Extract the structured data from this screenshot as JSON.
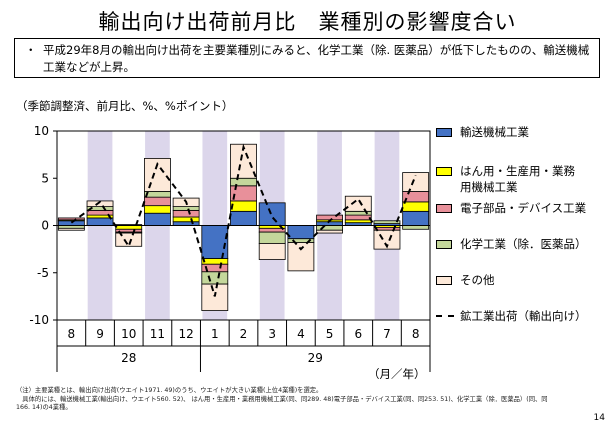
{
  "header": {
    "title": "輸出向け出荷前月比　業種別の影響度合い",
    "summary_bullet": "・",
    "summary_text": "平成29年8月の輸出向け出荷を主要業種別にみると、化学工業（除. 医薬品）が低下したものの、輸送機械工業などが上昇。",
    "unit_label": "（季節調整済、前月比、%、%ポイント）"
  },
  "chart_data": {
    "type": "bar",
    "stacked": true,
    "categories": [
      "8",
      "9",
      "10",
      "11",
      "12",
      "1",
      "2",
      "3",
      "4",
      "5",
      "6",
      "7",
      "8"
    ],
    "year_labels": [
      "28",
      "29"
    ],
    "x_unit_label": "（月／年）",
    "ylim": [
      -10,
      10
    ],
    "yticks": [
      -10,
      -5,
      0,
      5,
      10
    ],
    "shaded_categories": [
      1,
      3,
      5,
      7,
      9,
      11
    ],
    "shade_color": "#dcd6eb",
    "series": [
      {
        "name": "輸送機械工業",
        "color": "#4472c4",
        "values": [
          0.5,
          0.8,
          0.1,
          1.3,
          0.4,
          -3.5,
          1.5,
          2.4,
          -1.4,
          0.4,
          0.3,
          0.2,
          1.5
        ]
      },
      {
        "name": "はん用・生産用・業務用機械工業",
        "color": "#ffff00",
        "values": [
          0.1,
          0.3,
          -0.4,
          0.8,
          0.5,
          -0.6,
          1.1,
          -0.3,
          0.0,
          0.2,
          0.3,
          -0.2,
          1.0
        ]
      },
      {
        "name": "電子部品・デバイス工業",
        "color": "#e8909a",
        "values": [
          0.2,
          0.5,
          -0.3,
          0.9,
          0.7,
          -0.8,
          1.6,
          -0.4,
          0.0,
          0.5,
          0.5,
          -0.3,
          1.1
        ]
      },
      {
        "name": "化学工業（除．医薬品）",
        "color": "#c4d79b",
        "values": [
          -0.3,
          0.4,
          -0.1,
          0.6,
          0.4,
          -1.3,
          0.8,
          -1.2,
          -0.4,
          -0.5,
          0.4,
          0.3,
          -0.4
        ]
      },
      {
        "name": "その他",
        "color": "#fde9d9",
        "values": [
          -0.2,
          0.6,
          -1.4,
          3.5,
          0.9,
          -2.8,
          3.6,
          -1.7,
          -3.0,
          -0.3,
          1.6,
          -2.0,
          2.0
        ]
      }
    ],
    "line": {
      "name": "鉱工業出荷（輸出向け）",
      "color": "#000000",
      "values": [
        0.3,
        2.5,
        -2.2,
        6.5,
        2.5,
        -7.5,
        8.3,
        0.9,
        -2.5,
        0.5,
        2.8,
        -2.2,
        5.3
      ]
    }
  },
  "notes": {
    "line1": "（注）主要業種とは、輸出向け出荷(ウエイト1971. 49)のうち、ウエイトが大きい業種(上位4業種)を選定。",
    "line2": "　具体的には、輸送機械工業(輸出向け、ウエイト560. 52)、 はん用・生産用・業務用機械工業(同、同289. 48)電子部品・デバイス工業(同、同253. 51)、化学工業（除．医薬品）(同、同",
    "line3": "166. 14)の4業種。"
  },
  "page_number": "14"
}
